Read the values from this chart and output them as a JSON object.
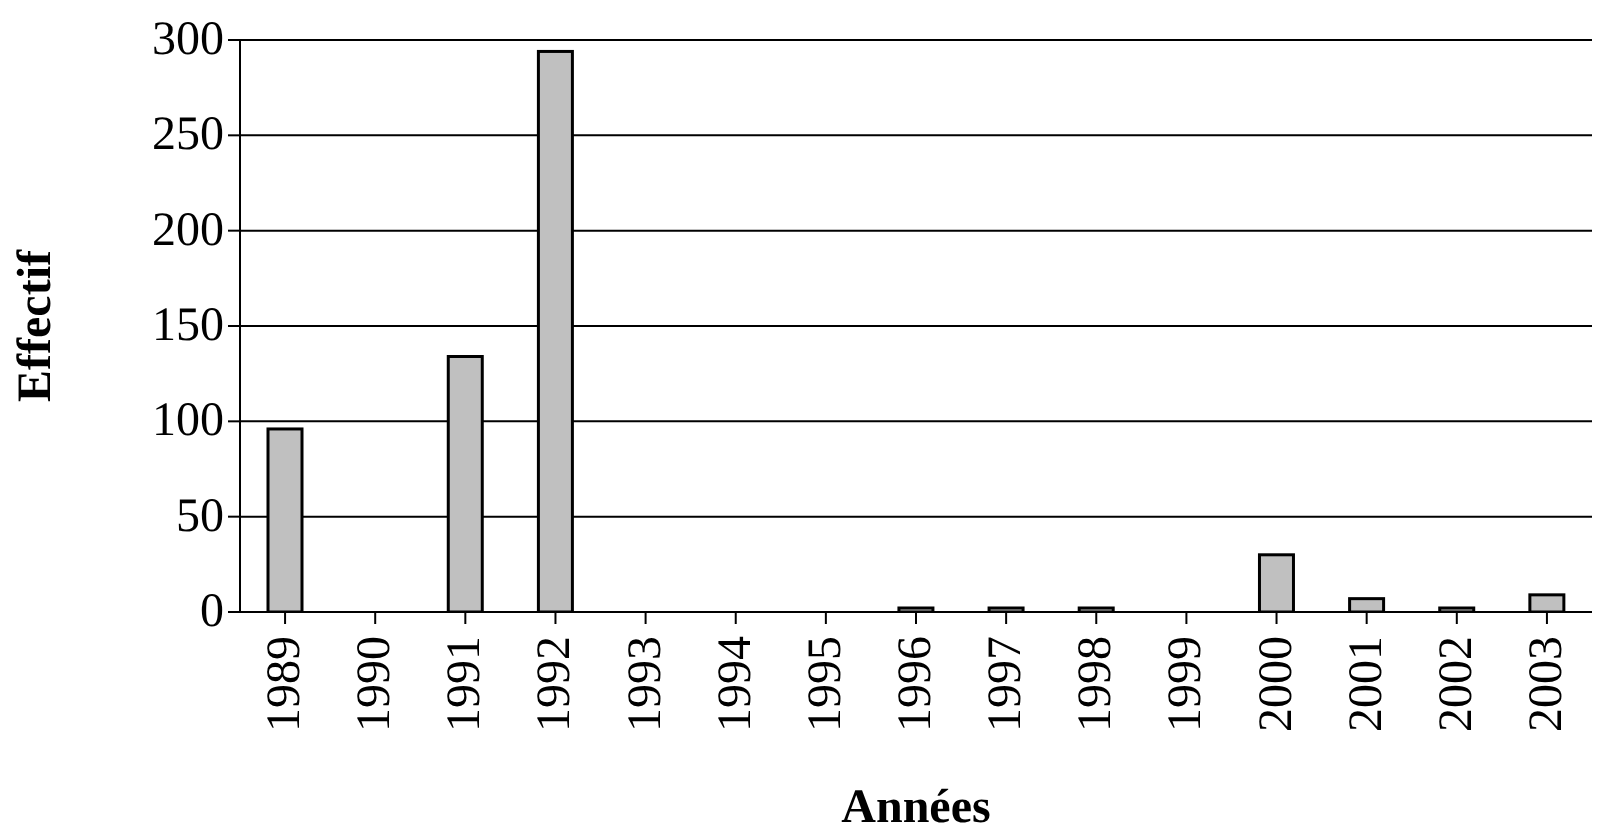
{
  "chart_data": {
    "type": "bar",
    "xlabel": "Années",
    "ylabel": "Effectif",
    "categories": [
      "1989",
      "1990",
      "1991",
      "1992",
      "1993",
      "1994",
      "1995",
      "1996",
      "1997",
      "1998",
      "1999",
      "2000",
      "2001",
      "2002",
      "2003"
    ],
    "values": [
      96,
      null,
      134,
      294,
      null,
      null,
      null,
      0,
      0,
      0,
      null,
      30,
      7,
      0,
      9
    ],
    "color": "#c0c0c0",
    "ylim": [
      0,
      300
    ],
    "yticks": [
      0,
      50,
      100,
      150,
      200,
      250,
      300
    ],
    "grid": "y"
  }
}
